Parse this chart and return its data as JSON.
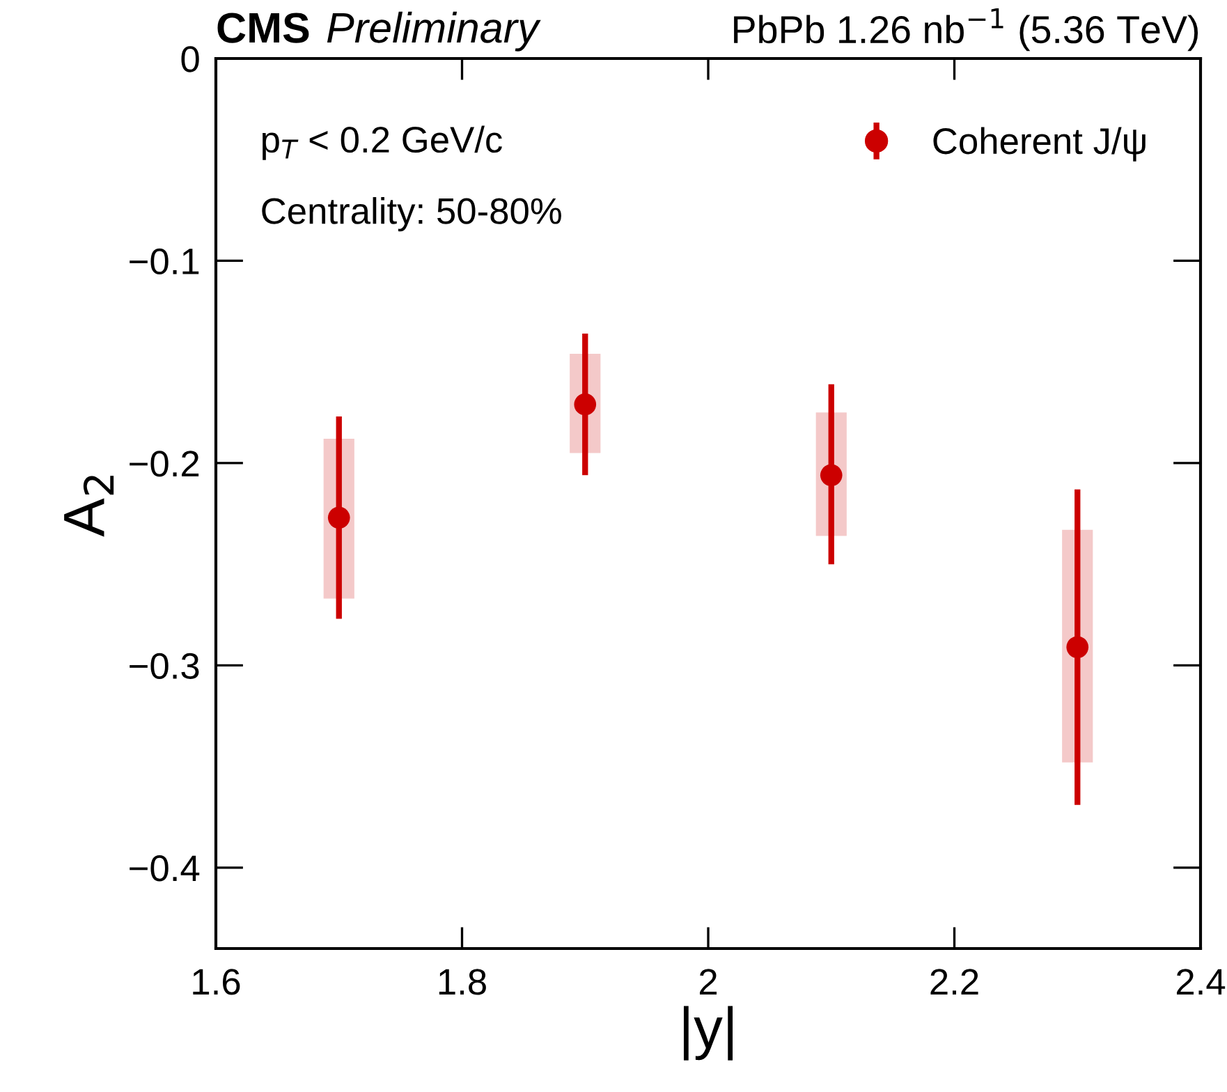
{
  "chart_data": {
    "type": "scatter",
    "title": "CMS",
    "subtitle": "Preliminary",
    "xlabel": "|y|",
    "ylabel": "A$_{2}$",
    "annotations": [
      "PbPb 1.26 nb$^{−1}$ (5.36 TeV)",
      "p$_{T}$ < 0.2 GeV/c",
      "Centrality: 50-80%"
    ],
    "series": [
      {
        "type": "bar",
        "color": "#f4c9c9",
        "x": [
          1.7,
          1.9,
          2.1,
          2.3
        ],
        "base": [
          -0.267,
          -0.195,
          -0.236,
          -0.348
        ],
        "values": [
          0.079,
          0.049,
          0.061,
          0.115
        ]
      },
      {
        "name": "Coherent J/ψ",
        "color": "#cc0000",
        "x": [
          1.7,
          1.9,
          2.1,
          2.3
        ],
        "values": [
          -0.227,
          -0.171,
          -0.206,
          -0.291
        ],
        "errors": [
          [
            -0.277,
            -0.177
          ],
          [
            -0.206,
            -0.136
          ],
          [
            -0.25,
            -0.161
          ],
          [
            -0.369,
            -0.213
          ]
        ],
        "marker": "circle"
      }
    ],
    "xlim": [
      1.6,
      2.4
    ],
    "xticks": [
      1.6,
      1.8,
      2,
      2.2,
      2.4
    ],
    "ylim": [
      -0.44,
      0
    ],
    "yticks": [
      {
        "value": -0.4,
        "label": "−0.4"
      },
      {
        "value": -0.3,
        "label": "−0.3"
      },
      {
        "value": -0.2,
        "label": "−0.2"
      },
      {
        "value": -0.1,
        "label": "−0.1"
      },
      0
    ],
    "grid": false,
    "legend": "top right"
  }
}
